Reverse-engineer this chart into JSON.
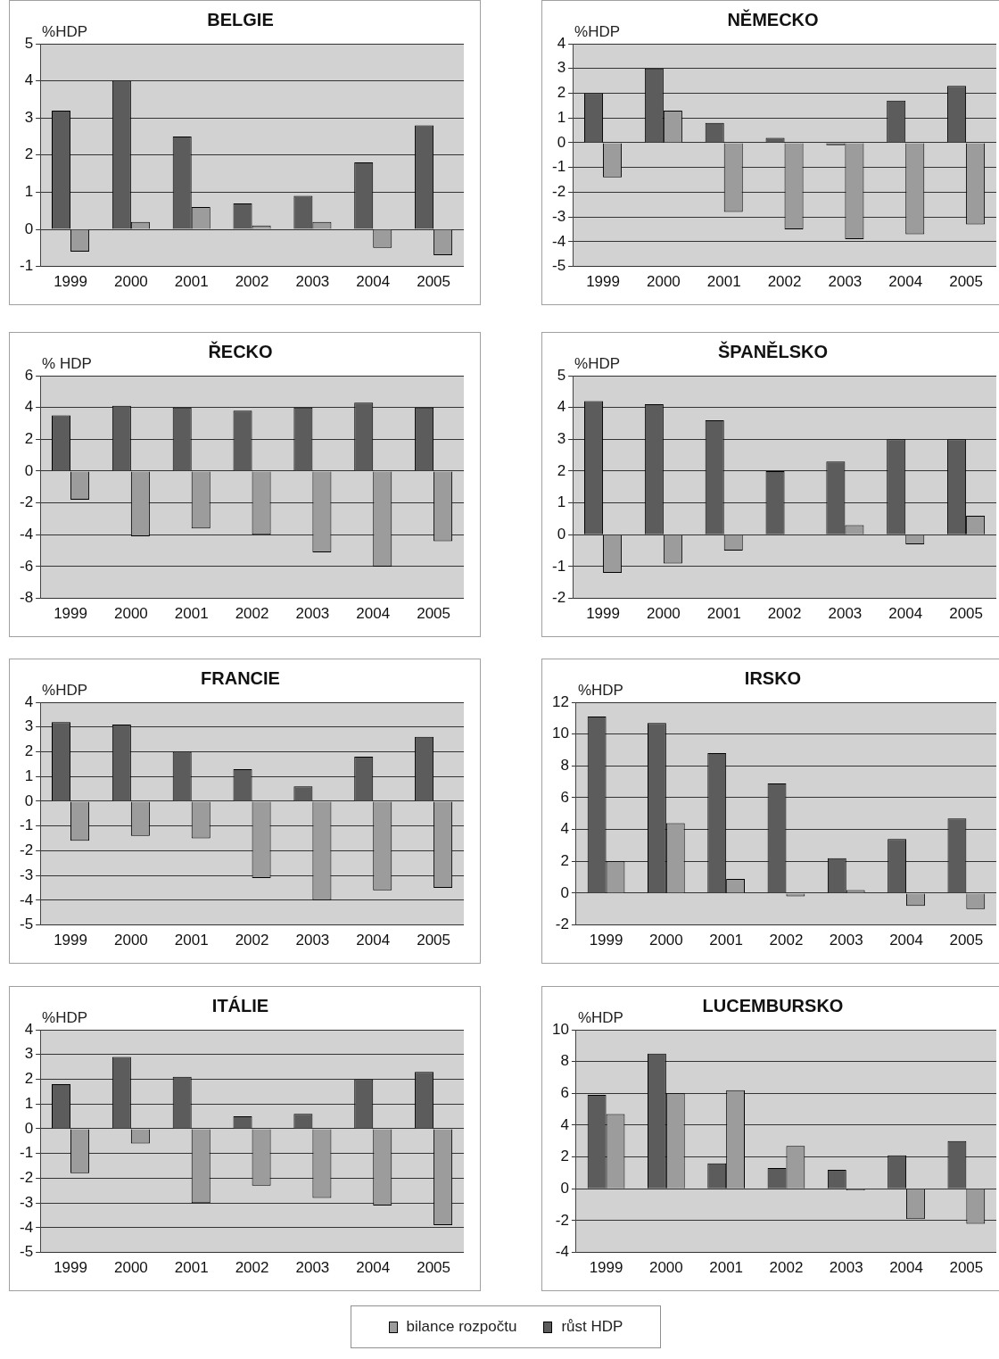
{
  "chart_data": [
    {
      "type": "bar",
      "title": "BELGIE",
      "ylabel": "%HDP",
      "categories": [
        "1999",
        "2000",
        "2001",
        "2002",
        "2003",
        "2004",
        "2005"
      ],
      "ylim": [
        -1,
        5
      ],
      "yticks": [
        -1,
        0,
        1,
        2,
        3,
        4,
        5
      ],
      "grid": "y",
      "legend": "bottom",
      "series": [
        {
          "name": "růst HDP",
          "color": "#5c5c5c",
          "values": [
            3.2,
            4.0,
            2.5,
            0.7,
            0.9,
            1.8,
            2.8
          ]
        },
        {
          "name": "bilance rozpočtu",
          "color": "#9c9c9c",
          "values": [
            -0.6,
            0.2,
            0.6,
            0.1,
            0.2,
            -0.5,
            -0.7
          ]
        }
      ]
    },
    {
      "type": "bar",
      "title": "NĚMECKO",
      "ylabel": "%HDP",
      "categories": [
        "1999",
        "2000",
        "2001",
        "2002",
        "2003",
        "2004",
        "2005"
      ],
      "ylim": [
        -5,
        4
      ],
      "yticks": [
        -5,
        -4,
        -3,
        -2,
        -1,
        0,
        1,
        2,
        3,
        4
      ],
      "grid": "y",
      "legend": "bottom",
      "series": [
        {
          "name": "růst HDP",
          "color": "#5c5c5c",
          "values": [
            2.0,
            3.0,
            0.8,
            0.2,
            -0.1,
            1.7,
            2.3
          ]
        },
        {
          "name": "bilance rozpočtu",
          "color": "#9c9c9c",
          "values": [
            -1.4,
            1.3,
            -2.8,
            -3.5,
            -3.9,
            -3.7,
            -3.3
          ]
        }
      ]
    },
    {
      "type": "bar",
      "title": "ŘECKO",
      "ylabel": "% HDP",
      "categories": [
        "1999",
        "2000",
        "2001",
        "2002",
        "2003",
        "2004",
        "2005"
      ],
      "ylim": [
        -8,
        6
      ],
      "yticks": [
        -8,
        -6,
        -4,
        -2,
        0,
        2,
        4,
        6
      ],
      "grid": "y",
      "legend": "bottom",
      "series": [
        {
          "name": "růst HDP",
          "color": "#5c5c5c",
          "values": [
            3.5,
            4.1,
            4.0,
            3.8,
            4.0,
            4.3,
            4.0
          ]
        },
        {
          "name": "bilance rozpočtu",
          "color": "#9c9c9c",
          "values": [
            -1.8,
            -4.1,
            -3.6,
            -4.0,
            -5.1,
            -6.0,
            -4.4
          ]
        }
      ]
    },
    {
      "type": "bar",
      "title": "ŠPANĚLSKO",
      "ylabel": "%HDP",
      "categories": [
        "1999",
        "2000",
        "2001",
        "2002",
        "2003",
        "2004",
        "2005"
      ],
      "ylim": [
        -2,
        5
      ],
      "yticks": [
        -2,
        -1,
        0,
        1,
        2,
        3,
        4,
        5
      ],
      "grid": "y",
      "legend": "bottom",
      "series": [
        {
          "name": "růst HDP",
          "color": "#5c5c5c",
          "values": [
            4.2,
            4.1,
            3.6,
            2.0,
            2.3,
            3.0,
            3.0
          ]
        },
        {
          "name": "bilance rozpočtu",
          "color": "#9c9c9c",
          "values": [
            -1.2,
            -0.9,
            -0.5,
            0,
            0.3,
            -0.3,
            0.6
          ]
        }
      ]
    },
    {
      "type": "bar",
      "title": "FRANCIE",
      "ylabel": "%HDP",
      "categories": [
        "1999",
        "2000",
        "2001",
        "2002",
        "2003",
        "2004",
        "2005"
      ],
      "ylim": [
        -5,
        4
      ],
      "yticks": [
        -5,
        -4,
        -3,
        -2,
        -1,
        0,
        1,
        2,
        3,
        4
      ],
      "grid": "y",
      "legend": "bottom",
      "series": [
        {
          "name": "růst HDP",
          "color": "#5c5c5c",
          "values": [
            3.2,
            3.1,
            2.0,
            1.3,
            0.6,
            1.8,
            2.6
          ]
        },
        {
          "name": "bilance rozpočtu",
          "color": "#9c9c9c",
          "values": [
            -1.6,
            -1.4,
            -1.5,
            -3.1,
            -4.0,
            -3.6,
            -3.5
          ]
        }
      ]
    },
    {
      "type": "bar",
      "title": "IRSKO",
      "ylabel": "%HDP",
      "categories": [
        "1999",
        "2000",
        "2001",
        "2002",
        "2003",
        "2004",
        "2005"
      ],
      "ylim": [
        -2,
        12
      ],
      "yticks": [
        -2,
        0,
        2,
        4,
        6,
        8,
        10,
        12
      ],
      "grid": "y",
      "legend": "bottom",
      "series": [
        {
          "name": "růst HDP",
          "color": "#5c5c5c",
          "values": [
            11.1,
            10.7,
            8.8,
            6.9,
            2.2,
            3.4,
            4.7
          ]
        },
        {
          "name": "bilance rozpočtu",
          "color": "#9c9c9c",
          "values": [
            2.0,
            4.4,
            0.9,
            -0.2,
            0.2,
            -0.8,
            -1.0
          ]
        }
      ]
    },
    {
      "type": "bar",
      "title": "ITÁLIE",
      "ylabel": "%HDP",
      "categories": [
        "1999",
        "2000",
        "2001",
        "2002",
        "2003",
        "2004",
        "2005"
      ],
      "ylim": [
        -5,
        4
      ],
      "yticks": [
        -5,
        -4,
        -3,
        -2,
        -1,
        0,
        1,
        2,
        3,
        4
      ],
      "grid": "y",
      "legend": "bottom",
      "series": [
        {
          "name": "růst HDP",
          "color": "#5c5c5c",
          "values": [
            1.8,
            2.9,
            2.1,
            0.5,
            0.6,
            2.0,
            2.3
          ]
        },
        {
          "name": "bilance rozpočtu",
          "color": "#9c9c9c",
          "values": [
            -1.8,
            -0.6,
            -3.0,
            -2.3,
            -2.8,
            -3.1,
            -3.9
          ]
        }
      ]
    },
    {
      "type": "bar",
      "title": "LUCEMBURSKO",
      "ylabel": "%HDP",
      "categories": [
        "1999",
        "2000",
        "2001",
        "2002",
        "2003",
        "2004",
        "2005"
      ],
      "ylim": [
        -4,
        10
      ],
      "yticks": [
        -4,
        -2,
        0,
        2,
        4,
        6,
        8,
        10
      ],
      "grid": "y",
      "legend": "bottom",
      "series": [
        {
          "name": "růst HDP",
          "color": "#5c5c5c",
          "values": [
            5.9,
            8.5,
            1.6,
            1.3,
            1.2,
            2.1,
            3.0
          ]
        },
        {
          "name": "bilance rozpočtu",
          "color": "#9c9c9c",
          "values": [
            4.7,
            6.0,
            6.2,
            2.7,
            -0.1,
            -1.9,
            -2.2
          ]
        }
      ]
    }
  ]
}
